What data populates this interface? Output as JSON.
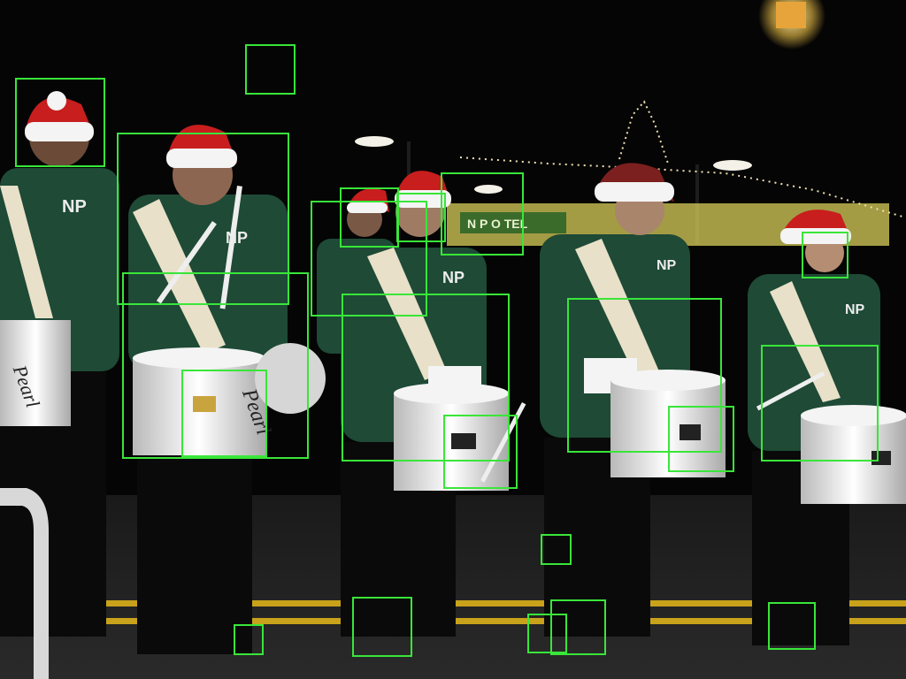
{
  "image": {
    "description_hidden": false,
    "box_color": "#39e639",
    "drum_brand": "Pearl",
    "uniform_logo": "NP",
    "sign_text": "N P O TEL"
  },
  "detections": [
    {
      "id": "box-hat-left"
    },
    {
      "id": "box-small-top"
    },
    {
      "id": "box-drummer-2-upper"
    },
    {
      "id": "box-drummer-2-torso"
    },
    {
      "id": "box-drummer-2-drum"
    },
    {
      "id": "box-drummer-3-head"
    },
    {
      "id": "box-drummer-3-hat"
    },
    {
      "id": "box-drummer-3-upper"
    },
    {
      "id": "box-sign"
    },
    {
      "id": "box-drummer-3-torso"
    },
    {
      "id": "box-drummer-3-drum"
    },
    {
      "id": "box-drummer-4-torso"
    },
    {
      "id": "box-drummer-4-drum"
    },
    {
      "id": "box-drummer-5-face"
    },
    {
      "id": "box-drummer-5-torso"
    },
    {
      "id": "box-ground-1"
    },
    {
      "id": "box-ground-2"
    },
    {
      "id": "box-ground-3"
    },
    {
      "id": "box-ground-4"
    },
    {
      "id": "box-ground-5"
    },
    {
      "id": "box-ground-6"
    }
  ]
}
